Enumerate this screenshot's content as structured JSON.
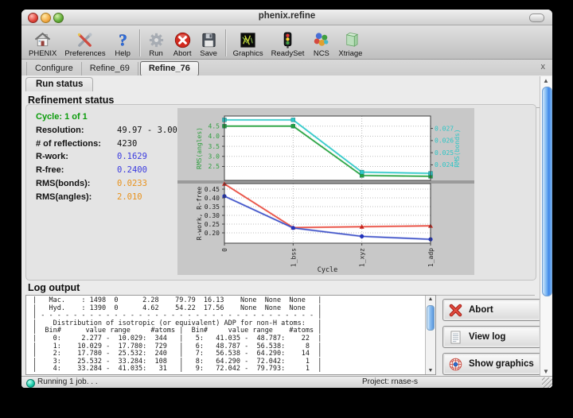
{
  "window": {
    "title": "phenix.refine"
  },
  "toolbar": {
    "items": [
      {
        "label": "PHENIX",
        "icon": "house-icon"
      },
      {
        "label": "Preferences",
        "icon": "tools-icon"
      },
      {
        "label": "Help",
        "icon": "question-mark-icon"
      },
      {
        "label": "Run",
        "icon": "gear-icon"
      },
      {
        "label": "Abort",
        "icon": "red-x-circle-icon"
      },
      {
        "label": "Save",
        "icon": "floppy-disk-icon"
      },
      {
        "label": "Graphics",
        "icon": "molecule-graphics-icon"
      },
      {
        "label": "ReadySet",
        "icon": "traffic-light-icon"
      },
      {
        "label": "NCS",
        "icon": "colored-spheres-icon"
      },
      {
        "label": "Xtriage",
        "icon": "crystal-icon"
      }
    ]
  },
  "tabs": {
    "items": [
      {
        "label": "Configure",
        "active": false
      },
      {
        "label": "Refine_69",
        "active": false
      },
      {
        "label": "Refine_76",
        "active": true
      }
    ],
    "close_label": "x"
  },
  "run_status_tab": {
    "label": "Run status"
  },
  "refinement": {
    "heading": "Refinement status",
    "cycle": "Cycle: 1 of 1",
    "stats": [
      {
        "label": "Resolution:",
        "value": "49.97 - 3.00",
        "color": "black"
      },
      {
        "label": "# of reflections:",
        "value": "4230",
        "color": "black"
      },
      {
        "label": "R-work:",
        "value": "0.1629",
        "color": "#3b3bdf"
      },
      {
        "label": "R-free:",
        "value": "0.2400",
        "color": "#3b3bdf"
      },
      {
        "label": "RMS(bonds):",
        "value": "0.0233",
        "color": "#e8921c"
      },
      {
        "label": "RMS(angles):",
        "value": "2.010",
        "color": "#e8921c"
      }
    ]
  },
  "chart_data": {
    "type": "line",
    "x_categories": [
      "0",
      "1_bss",
      "1_xyz",
      "1_adp"
    ],
    "xlabel": "Cycle",
    "panels": [
      {
        "ylabel": "RMS(angles)",
        "ylabel_color": "#2e9e3e",
        "yticks": [
          "2.5",
          "3.0",
          "3.5",
          "4.0",
          "4.5"
        ],
        "ylim": [
          1.808,
          5.0
        ],
        "right_ylabel": "RMS(bonds)",
        "right_color": "#2cc6c6",
        "right_yticks": [
          "0.024",
          "0.025",
          "0.026",
          "0.027"
        ],
        "right_ylim": [
          0.02272,
          0.02802
        ],
        "series": [
          {
            "name": "RMS(angles)",
            "axis": "left",
            "color": "#22a03c",
            "marker": "square",
            "values": [
              4.5,
              4.5,
              2.05,
              2.01
            ]
          },
          {
            "name": "RMS(bonds)",
            "axis": "right",
            "color": "#2cc8c8",
            "marker": "square",
            "values": [
              0.0277,
              0.0277,
              0.0234,
              0.0233
            ]
          }
        ]
      },
      {
        "ylabel": "R-work, R-free",
        "ylabel_color": "#222222",
        "yticks": [
          "0.20",
          "0.25",
          "0.30",
          "0.35",
          "0.40",
          "0.45"
        ],
        "ylim": [
          0.1409,
          0.4818
        ],
        "series": [
          {
            "name": "R-free",
            "axis": "left",
            "color": "#e8493c",
            "marker": "triangle",
            "values": [
              0.48,
              0.23,
              0.235,
              0.24
            ]
          },
          {
            "name": "R-work",
            "axis": "left",
            "color": "#3c50c8",
            "marker": "circle",
            "values": [
              0.41,
              0.228,
              0.18,
              0.163
            ]
          }
        ]
      }
    ],
    "grid": true,
    "legend": "none"
  },
  "log": {
    "heading": "Log output",
    "lines": [
      "|   Mac.    : 1498  0      2.28    79.79  16.13    None  None  None   |",
      "|   Hyd.    : 1390  0      4.62    54.22  17.56    None  None  None   |",
      "| - - - - - - - - - - - - - - - - - - - - - - - - - - - - - - - - - - |",
      "|    Distribution of isotropic (or equivalent) ADP for non-H atoms:   |",
      "|  Bin#      value range     #atoms |  Bin#     value range    #atoms |",
      "|    0:     2.277 -  10.029:  344   |   5:   41.035 -  48.787:    22  |",
      "|    1:    10.029 -  17.780:  729   |   6:   48.787 -  56.538:     8  |",
      "|    2:    17.780 -  25.532:  240   |   7:   56.538 -  64.290:    14  |",
      "|    3:    25.532 -  33.284:  108   |   8:   64.290 -  72.042:     1  |",
      "|    4:    33.284 -  41.035:   31   |   9:   72.042 -  79.793:     1  |"
    ]
  },
  "actions": [
    {
      "label": "Abort",
      "icon": "red-x-icon"
    },
    {
      "label": "View log",
      "icon": "document-icon"
    },
    {
      "label": "Show graphics",
      "icon": "wireframe-sphere-icon"
    }
  ],
  "statusbar": {
    "left": "Running 1 job. . .",
    "right": "Project: rnase-s"
  }
}
